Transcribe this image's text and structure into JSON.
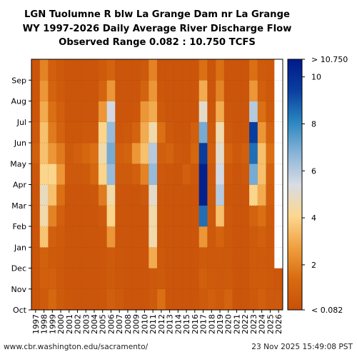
{
  "chart_data": {
    "type": "heatmap",
    "title": [
      "LGN Tuolumne R blw La Grange Dam nr La Grange",
      "WY 1997-2026 Daily Average River Discharge Flow",
      "Observed Range 0.082 : 10.750 TCFS"
    ],
    "x_labels": [
      "1997",
      "1998",
      "1999",
      "2000",
      "2001",
      "2002",
      "2003",
      "2004",
      "2005",
      "2006",
      "2007",
      "2008",
      "2009",
      "2010",
      "2011",
      "2012",
      "2013",
      "2014",
      "2015",
      "2016",
      "2017",
      "2018",
      "2019",
      "2020",
      "2021",
      "2022",
      "2023",
      "2024",
      "2025",
      "2026"
    ],
    "y_labels": [
      "Oct",
      "Nov",
      "Dec",
      "Jan",
      "Feb",
      "Mar",
      "Apr",
      "May",
      "Jun",
      "Jul",
      "Aug",
      "Sep"
    ],
    "colorbar": {
      "min_label": "< 0.082",
      "max_label": "> 10.750",
      "tick_values": [
        2,
        4,
        6,
        8,
        10
      ],
      "tick_labels": [
        "2",
        "4",
        "6",
        "8",
        "10"
      ],
      "min": 0.082,
      "max": 10.75,
      "colors": [
        "#c8500a",
        "#d86c10",
        "#f0a040",
        "#fbd890",
        "#d8dce4",
        "#88b4d8",
        "#2a86c0",
        "#0a3ea0",
        "#001a8a"
      ]
    },
    "monthly_flow_tcfs_approx": {
      "1997": [
        0.3,
        0.3,
        0.3,
        0.3,
        0.3,
        0.3,
        0.4,
        0.8,
        0.5,
        0.3,
        0.3,
        0.3
      ],
      "1998": [
        0.6,
        0.8,
        0.9,
        3.6,
        4.5,
        4.8,
        4.0,
        3.5,
        3.5,
        3.0,
        2.5,
        2.0
      ],
      "1999": [
        1.2,
        0.8,
        0.6,
        0.8,
        2.0,
        3.5,
        4.0,
        2.5,
        1.8,
        1.5,
        1.0,
        0.8
      ],
      "2000": [
        0.6,
        0.5,
        0.5,
        0.6,
        0.8,
        1.5,
        2.5,
        1.8,
        1.0,
        0.8,
        0.6,
        0.5
      ],
      "2001": [
        0.4,
        0.3,
        0.3,
        0.3,
        0.3,
        0.3,
        0.5,
        0.6,
        0.4,
        0.3,
        0.3,
        0.3
      ],
      "2002": [
        0.3,
        0.3,
        0.3,
        0.3,
        0.3,
        0.3,
        0.5,
        0.8,
        0.4,
        0.3,
        0.3,
        0.3
      ],
      "2003": [
        0.3,
        0.3,
        0.3,
        0.3,
        0.3,
        0.3,
        0.6,
        1.2,
        0.5,
        0.3,
        0.3,
        0.3
      ],
      "2004": [
        0.3,
        0.3,
        0.3,
        0.3,
        0.3,
        0.4,
        1.2,
        1.5,
        0.5,
        0.3,
        0.3,
        0.3
      ],
      "2005": [
        0.4,
        0.4,
        0.4,
        0.4,
        0.6,
        1.8,
        4.0,
        4.5,
        4.0,
        2.5,
        1.0,
        0.6
      ],
      "2006": [
        0.8,
        0.6,
        0.6,
        2.5,
        4.0,
        4.5,
        6.5,
        7.0,
        6.5,
        5.5,
        2.5,
        1.0
      ],
      "2007": [
        0.6,
        0.4,
        0.4,
        0.3,
        0.3,
        0.3,
        0.6,
        0.8,
        0.4,
        0.3,
        0.3,
        0.3
      ],
      "2008": [
        0.3,
        0.3,
        0.3,
        0.3,
        0.3,
        0.3,
        0.6,
        1.0,
        0.5,
        0.3,
        0.3,
        0.3
      ],
      "2009": [
        0.3,
        0.3,
        0.3,
        0.3,
        0.3,
        0.3,
        0.8,
        2.5,
        1.0,
        0.4,
        0.3,
        0.3
      ],
      "2010": [
        0.3,
        0.3,
        0.3,
        0.3,
        0.3,
        0.5,
        2.0,
        3.5,
        3.0,
        2.5,
        1.0,
        0.5
      ],
      "2011": [
        0.6,
        0.5,
        3.0,
        4.5,
        4.5,
        5.0,
        6.5,
        6.0,
        4.5,
        3.0,
        2.5,
        2.0
      ],
      "2012": [
        1.5,
        0.6,
        0.5,
        0.4,
        0.4,
        0.4,
        0.5,
        0.8,
        1.5,
        0.6,
        0.4,
        0.3
      ],
      "2013": [
        0.3,
        0.3,
        0.3,
        0.3,
        0.3,
        0.3,
        0.4,
        1.0,
        0.5,
        0.3,
        0.3,
        0.3
      ],
      "2014": [
        0.3,
        0.3,
        0.3,
        0.3,
        0.3,
        0.3,
        0.3,
        0.5,
        0.3,
        0.3,
        0.3,
        0.3
      ],
      "2015": [
        0.3,
        0.3,
        0.3,
        0.3,
        0.3,
        0.3,
        0.8,
        0.4,
        0.3,
        0.3,
        0.3,
        0.3
      ],
      "2016": [
        0.3,
        0.3,
        0.3,
        0.3,
        0.3,
        0.3,
        0.5,
        1.2,
        0.8,
        0.3,
        0.3,
        0.3
      ],
      "2017": [
        0.6,
        0.8,
        0.6,
        2.5,
        8.5,
        10.5,
        10.5,
        9.5,
        7.0,
        5.0,
        3.0,
        1.5
      ],
      "2018": [
        0.8,
        0.6,
        0.5,
        0.5,
        0.5,
        0.6,
        0.6,
        0.8,
        0.6,
        0.4,
        0.3,
        0.3
      ],
      "2019": [
        0.6,
        0.5,
        0.5,
        1.0,
        3.5,
        6.0,
        5.5,
        5.0,
        4.5,
        3.0,
        2.0,
        1.5
      ],
      "2020": [
        1.0,
        0.6,
        0.5,
        0.5,
        0.5,
        0.4,
        0.5,
        1.0,
        0.5,
        0.4,
        0.3,
        0.3
      ],
      "2021": [
        0.3,
        0.3,
        0.3,
        0.3,
        0.3,
        0.3,
        0.3,
        0.5,
        0.3,
        0.3,
        0.3,
        0.3
      ],
      "2022": [
        0.3,
        0.3,
        0.3,
        0.3,
        0.3,
        0.3,
        0.5,
        0.8,
        0.4,
        0.3,
        0.3,
        0.3
      ],
      "2023": [
        0.5,
        0.6,
        0.6,
        0.6,
        1.0,
        4.0,
        7.0,
        8.5,
        9.5,
        6.0,
        2.5,
        1.5
      ],
      "2024": [
        0.8,
        0.6,
        0.6,
        0.8,
        1.5,
        3.0,
        3.5,
        3.5,
        2.5,
        1.5,
        0.8,
        0.6
      ],
      "2025": [
        0.5,
        0.5,
        0.5,
        0.5,
        0.6,
        0.8,
        1.0,
        1.5,
        1.0,
        0.6,
        0.5,
        0.5
      ],
      "2026": [
        0.5,
        0.4,
        null,
        null,
        null,
        null,
        null,
        null,
        null,
        null,
        null,
        null
      ]
    }
  },
  "footer": {
    "url": "www.cbr.washington.edu/sacramento/",
    "timestamp": "23 Nov 2025 15:49:08 PST"
  }
}
